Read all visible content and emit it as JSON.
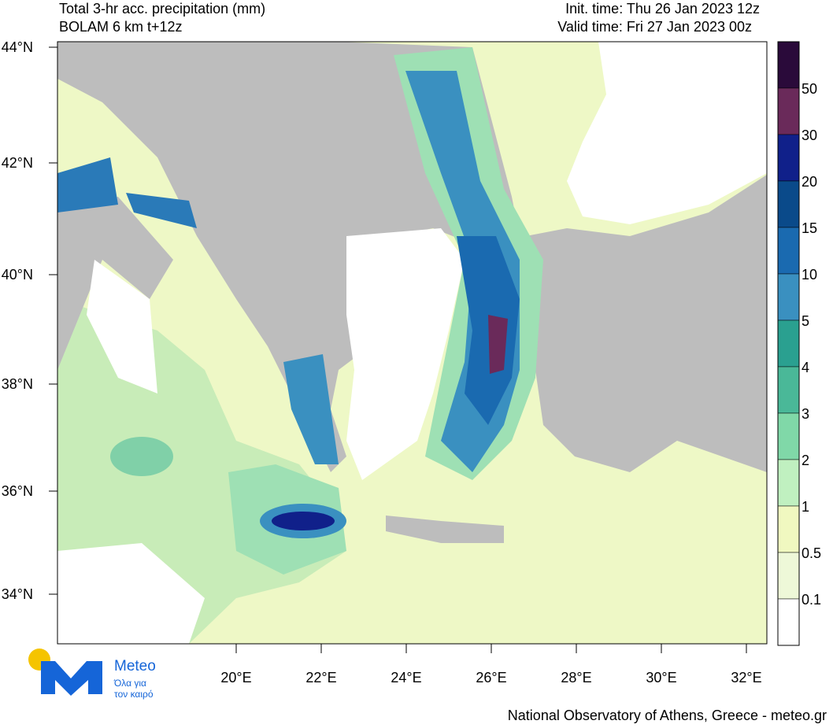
{
  "header": {
    "title_left_1": "Total 3-hr acc. precipitation (mm)",
    "title_left_2": "BOLAM 6 km t+12z",
    "title_right_1": "Init. time: Thu 26 Jan 2023 12z",
    "title_right_2": "Valid time: Fri 27 Jan 2023 00z"
  },
  "map": {
    "lat_labels": [
      "44°N",
      "42°N",
      "40°N",
      "38°N",
      "36°N",
      "34°N"
    ],
    "lon_labels": [
      "20°E",
      "22°E",
      "24°E",
      "26°E",
      "28°E",
      "30°E",
      "32°E"
    ]
  },
  "colorbar": {
    "levels": [
      50,
      30,
      20,
      15,
      10,
      5,
      4,
      3,
      2,
      1,
      0.5,
      0.1
    ]
  },
  "logo": {
    "name": "Meteo",
    "tagline_1": "Όλα για",
    "tagline_2": "τον καιρό"
  },
  "footer": "National Observatory of Athens, Greece - meteo.gr"
}
